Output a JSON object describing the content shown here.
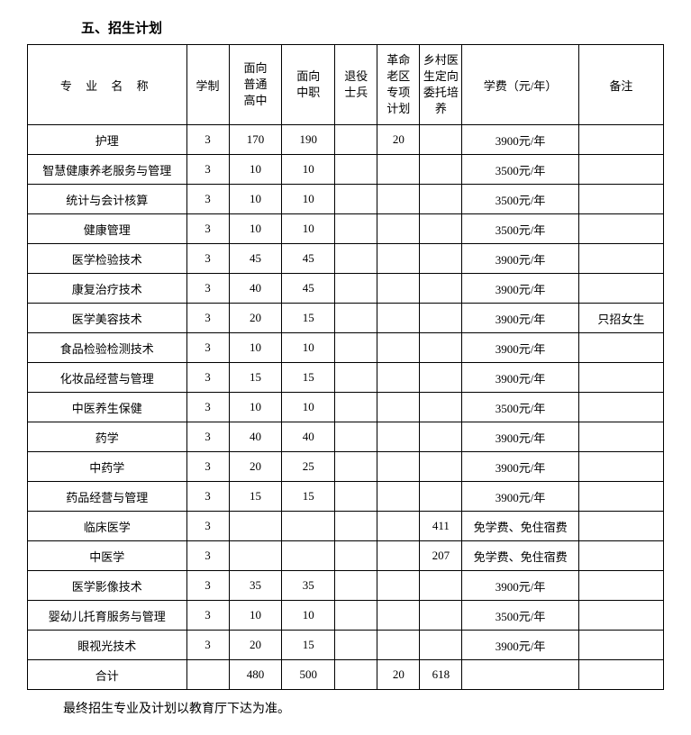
{
  "title": "五、招生计划",
  "columns": [
    "专 业 名 称",
    "学制",
    "面向\n普通\n高中",
    "面向\n中职",
    "退役\n士兵",
    "革命\n老区\n专项\n计划",
    "乡村医\n生定向\n委托培\n养",
    "学费（元/年）",
    "备注"
  ],
  "rows": [
    [
      "护理",
      "3",
      "170",
      "190",
      "",
      "20",
      "",
      "3900元/年",
      ""
    ],
    [
      "智慧健康养老服务与管理",
      "3",
      "10",
      "10",
      "",
      "",
      "",
      "3500元/年",
      ""
    ],
    [
      "统计与会计核算",
      "3",
      "10",
      "10",
      "",
      "",
      "",
      "3500元/年",
      ""
    ],
    [
      "健康管理",
      "3",
      "10",
      "10",
      "",
      "",
      "",
      "3500元/年",
      ""
    ],
    [
      "医学检验技术",
      "3",
      "45",
      "45",
      "",
      "",
      "",
      "3900元/年",
      ""
    ],
    [
      "康复治疗技术",
      "3",
      "40",
      "45",
      "",
      "",
      "",
      "3900元/年",
      ""
    ],
    [
      "医学美容技术",
      "3",
      "20",
      "15",
      "",
      "",
      "",
      "3900元/年",
      "只招女生"
    ],
    [
      "食品检验检测技术",
      "3",
      "10",
      "10",
      "",
      "",
      "",
      "3900元/年",
      ""
    ],
    [
      "化妆品经营与管理",
      "3",
      "15",
      "15",
      "",
      "",
      "",
      "3900元/年",
      ""
    ],
    [
      "中医养生保健",
      "3",
      "10",
      "10",
      "",
      "",
      "",
      "3500元/年",
      ""
    ],
    [
      "药学",
      "3",
      "40",
      "40",
      "",
      "",
      "",
      "3900元/年",
      ""
    ],
    [
      "中药学",
      "3",
      "20",
      "25",
      "",
      "",
      "",
      "3900元/年",
      ""
    ],
    [
      "药品经营与管理",
      "3",
      "15",
      "15",
      "",
      "",
      "",
      "3900元/年",
      ""
    ],
    [
      "临床医学",
      "3",
      "",
      "",
      "",
      "",
      "411",
      "免学费、免住宿费",
      ""
    ],
    [
      "中医学",
      "3",
      "",
      "",
      "",
      "",
      "207",
      "免学费、免住宿费",
      ""
    ],
    [
      "医学影像技术",
      "3",
      "35",
      "35",
      "",
      "",
      "",
      "3900元/年",
      ""
    ],
    [
      "婴幼儿托育服务与管理",
      "3",
      "10",
      "10",
      "",
      "",
      "",
      "3500元/年",
      ""
    ],
    [
      "眼视光技术",
      "3",
      "20",
      "15",
      "",
      "",
      "",
      "3900元/年",
      ""
    ],
    [
      "合计",
      "",
      "480",
      "500",
      "",
      "20",
      "618",
      "",
      ""
    ]
  ],
  "note": "最终招生专业及计划以教育厅下达为准。"
}
